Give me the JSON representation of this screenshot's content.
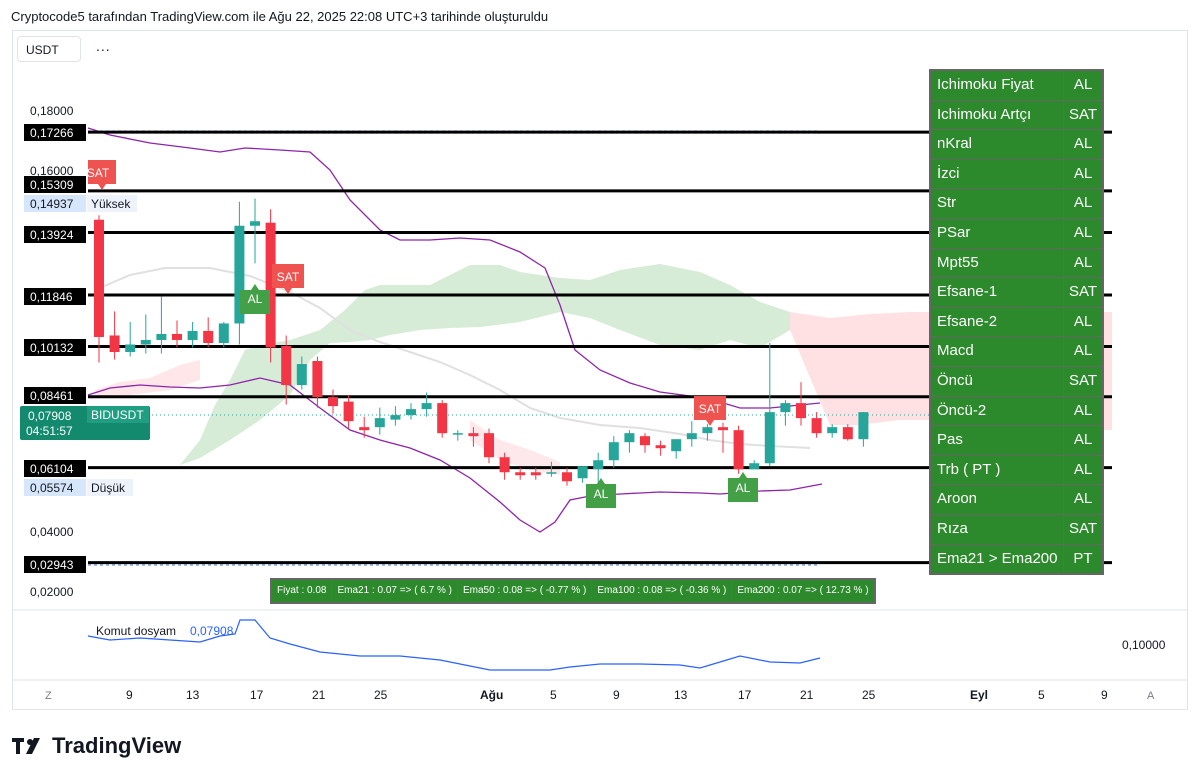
{
  "header": {
    "title": "Cryptocode5 tarafından TradingView.com ile Ağu 22, 2025 22:08 UTC+3 tarihinde oluşturuldu"
  },
  "symbol": {
    "label": "USDT",
    "more": "..."
  },
  "price_axis": {
    "gray_labels": [
      "0,18000",
      "0,16000",
      "0,04000",
      "0,02000"
    ],
    "black_labels": [
      "0,17266",
      "0,15309",
      "0,13924",
      "0,11846",
      "0,10132",
      "0,08461",
      "0,06104",
      "0,02943"
    ],
    "high_label": {
      "price": "0,14937",
      "text": "Yüksek"
    },
    "low_label": {
      "price": "0,05574",
      "text": "Düşük"
    },
    "current": {
      "price": "0,07908",
      "symbol": "BIDUSDT",
      "countdown": "04:51:57"
    }
  },
  "chart_signals": [
    {
      "text": "SAT",
      "color": "#ef5350"
    },
    {
      "text": "SAT",
      "color": "#ef5350"
    },
    {
      "text": "AL",
      "color": "#43a047"
    },
    {
      "text": "SAT",
      "color": "#ef5350"
    },
    {
      "text": "AL",
      "color": "#43a047"
    },
    {
      "text": "AL",
      "color": "#43a047"
    }
  ],
  "signal_table": [
    {
      "name": "Ichimoku Fiyat",
      "value": "AL"
    },
    {
      "name": "Ichimoku Artçı",
      "value": "SAT"
    },
    {
      "name": "nKral",
      "value": "AL"
    },
    {
      "name": "İzci",
      "value": "AL"
    },
    {
      "name": "Str",
      "value": "AL"
    },
    {
      "name": "PSar",
      "value": "AL"
    },
    {
      "name": "Mpt55",
      "value": "AL"
    },
    {
      "name": "Efsane-1",
      "value": "SAT"
    },
    {
      "name": "Efsane-2",
      "value": "AL"
    },
    {
      "name": "Macd",
      "value": "AL"
    },
    {
      "name": "Öncü",
      "value": "SAT"
    },
    {
      "name": "Öncü-2",
      "value": "AL"
    },
    {
      "name": "Pas",
      "value": "AL"
    },
    {
      "name": "Trb ( PT )",
      "value": "AL"
    },
    {
      "name": "Aroon",
      "value": "AL"
    },
    {
      "name": "Rıza",
      "value": "SAT"
    },
    {
      "name": "Ema21 > Ema200",
      "value": "PT"
    }
  ],
  "ema_bar": [
    "Fiyat : 0.08",
    "Ema21 : 0.07 => ( 6.7 % )",
    "Ema50 : 0.08 => ( -0.77 % )",
    "Ema100 : 0.08 => ( -0.36 % )",
    "Ema200 : 0.07 => ( 12.73 % )"
  ],
  "indicator": {
    "name": "Komut dosyam",
    "value": "0,07908",
    "axis_label": "0,10000"
  },
  "time_axis": {
    "left_btn": "Z",
    "right_btn": "A",
    "labels": [
      "9",
      "13",
      "17",
      "21",
      "25",
      "Ağu",
      "5",
      "9",
      "13",
      "17",
      "21",
      "25",
      "Eyl",
      "5",
      "9"
    ]
  },
  "logo": {
    "text": "TradingView"
  },
  "colors": {
    "up": "#26a69a",
    "down": "#f23645",
    "table_bg": "#2c8a2c",
    "kijun": "#8e24aa",
    "indicator_line": "#2962ff"
  },
  "chart_data": {
    "type": "candlestick",
    "candles": [
      {
        "o": 0.1435,
        "h": 0.145,
        "c": 0.1045,
        "l": 0.096
      },
      {
        "o": 0.105,
        "h": 0.113,
        "c": 0.0995,
        "l": 0.097
      },
      {
        "o": 0.0995,
        "h": 0.1095,
        "c": 0.102,
        "l": 0.098
      },
      {
        "o": 0.102,
        "h": 0.112,
        "c": 0.1035,
        "l": 0.099
      },
      {
        "o": 0.1035,
        "h": 0.118,
        "c": 0.1055,
        "l": 0.099
      },
      {
        "o": 0.1055,
        "h": 0.11,
        "c": 0.1035,
        "l": 0.101
      },
      {
        "o": 0.1035,
        "h": 0.1095,
        "c": 0.1065,
        "l": 0.101
      },
      {
        "o": 0.1065,
        "h": 0.111,
        "c": 0.1025,
        "l": 0.101
      },
      {
        "o": 0.1025,
        "h": 0.1095,
        "c": 0.109,
        "l": 0.101
      },
      {
        "o": 0.109,
        "h": 0.1495,
        "c": 0.1415,
        "l": 0.102
      },
      {
        "o": 0.1415,
        "h": 0.1505,
        "c": 0.143,
        "l": 0.129
      },
      {
        "o": 0.1425,
        "h": 0.147,
        "c": 0.101,
        "l": 0.096
      },
      {
        "o": 0.1015,
        "h": 0.105,
        "c": 0.0885,
        "l": 0.082
      },
      {
        "o": 0.0885,
        "h": 0.098,
        "c": 0.0955,
        "l": 0.087
      },
      {
        "o": 0.0965,
        "h": 0.098,
        "c": 0.0845,
        "l": 0.081
      },
      {
        "o": 0.0845,
        "h": 0.087,
        "c": 0.0815,
        "l": 0.079
      },
      {
        "o": 0.083,
        "h": 0.085,
        "c": 0.0765,
        "l": 0.074
      },
      {
        "o": 0.0745,
        "h": 0.078,
        "c": 0.0735,
        "l": 0.071
      },
      {
        "o": 0.0745,
        "h": 0.081,
        "c": 0.0775,
        "l": 0.072
      },
      {
        "o": 0.077,
        "h": 0.0815,
        "c": 0.0785,
        "l": 0.075
      },
      {
        "o": 0.0785,
        "h": 0.0825,
        "c": 0.0805,
        "l": 0.077
      },
      {
        "o": 0.0805,
        "h": 0.086,
        "c": 0.0825,
        "l": 0.078
      },
      {
        "o": 0.0825,
        "h": 0.0835,
        "c": 0.0725,
        "l": 0.071
      },
      {
        "o": 0.0725,
        "h": 0.0735,
        "c": 0.0725,
        "l": 0.07
      },
      {
        "o": 0.0725,
        "h": 0.0745,
        "c": 0.0715,
        "l": 0.068
      },
      {
        "o": 0.0725,
        "h": 0.074,
        "c": 0.0645,
        "l": 0.0625
      },
      {
        "o": 0.0645,
        "h": 0.066,
        "c": 0.0595,
        "l": 0.057
      },
      {
        "o": 0.0595,
        "h": 0.061,
        "c": 0.0585,
        "l": 0.057
      },
      {
        "o": 0.0595,
        "h": 0.061,
        "c": 0.0585,
        "l": 0.057
      },
      {
        "o": 0.0595,
        "h": 0.063,
        "c": 0.0595,
        "l": 0.058
      },
      {
        "o": 0.0595,
        "h": 0.061,
        "c": 0.0565,
        "l": 0.055
      },
      {
        "o": 0.0575,
        "h": 0.0605,
        "c": 0.0615,
        "l": 0.056
      },
      {
        "o": 0.0605,
        "h": 0.066,
        "c": 0.0635,
        "l": 0.056
      },
      {
        "o": 0.0635,
        "h": 0.0715,
        "c": 0.0695,
        "l": 0.061
      },
      {
        "o": 0.0695,
        "h": 0.0735,
        "c": 0.0725,
        "l": 0.066
      },
      {
        "o": 0.0715,
        "h": 0.0725,
        "c": 0.0685,
        "l": 0.066
      },
      {
        "o": 0.0685,
        "h": 0.07,
        "c": 0.0675,
        "l": 0.065
      },
      {
        "o": 0.0665,
        "h": 0.0705,
        "c": 0.0705,
        "l": 0.064
      },
      {
        "o": 0.0705,
        "h": 0.0765,
        "c": 0.0725,
        "l": 0.068
      },
      {
        "o": 0.0725,
        "h": 0.0755,
        "c": 0.0745,
        "l": 0.07
      },
      {
        "o": 0.0745,
        "h": 0.076,
        "c": 0.0735,
        "l": 0.066
      },
      {
        "o": 0.0735,
        "h": 0.075,
        "c": 0.0605,
        "l": 0.059
      },
      {
        "o": 0.0605,
        "h": 0.0635,
        "c": 0.0625,
        "l": 0.061
      },
      {
        "o": 0.0625,
        "h": 0.1025,
        "c": 0.0795,
        "l": 0.0615
      },
      {
        "o": 0.0795,
        "h": 0.0835,
        "c": 0.0825,
        "l": 0.075
      },
      {
        "o": 0.0825,
        "h": 0.0895,
        "c": 0.0775,
        "l": 0.075
      },
      {
        "o": 0.0775,
        "h": 0.0795,
        "c": 0.0725,
        "l": 0.071
      },
      {
        "o": 0.0725,
        "h": 0.0755,
        "c": 0.0745,
        "l": 0.071
      },
      {
        "o": 0.0745,
        "h": 0.0755,
        "c": 0.0705,
        "l": 0.07
      },
      {
        "o": 0.0705,
        "h": 0.0795,
        "c": 0.0795,
        "l": 0.068
      }
    ],
    "horizontal_levels": [
      0.17266,
      0.15309,
      0.13924,
      0.11846,
      0.10132,
      0.08461,
      0.06104,
      0.02943
    ],
    "ylim": [
      0.02,
      0.18
    ]
  }
}
